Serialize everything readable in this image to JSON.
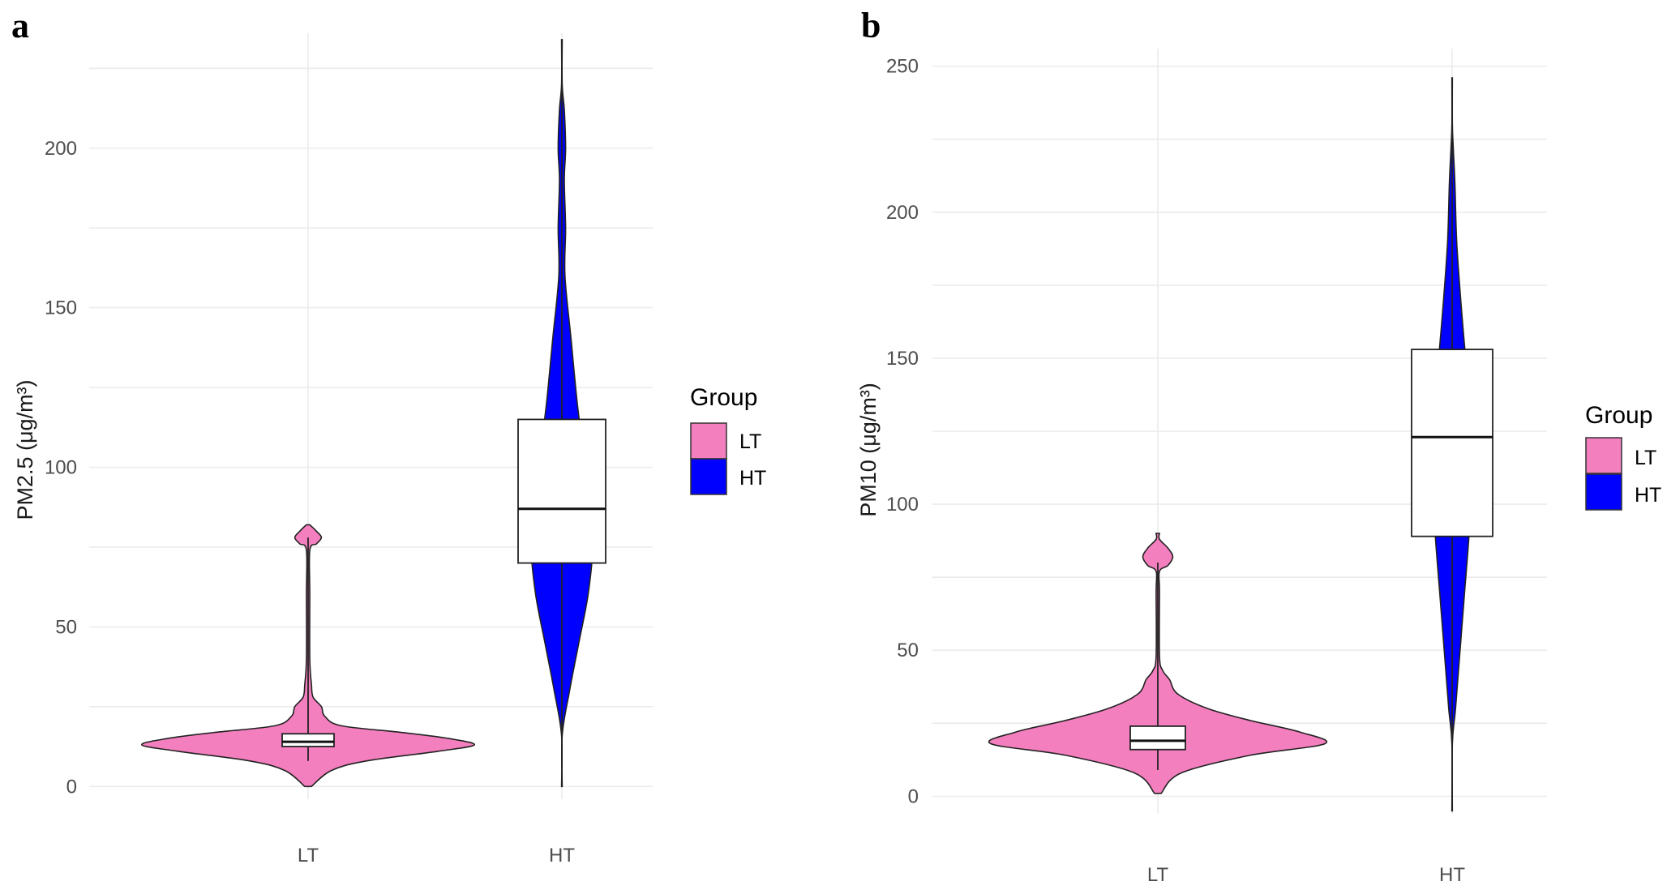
{
  "colors": {
    "LT": "#f47fbf",
    "HT": "#0000ff"
  },
  "chart_data": [
    {
      "panel": "a",
      "type": "violin",
      "ylabel": "PM2.5 (μg/m³)",
      "ylim": [
        -4,
        236
      ],
      "yticks": [
        0,
        50,
        100,
        150,
        200
      ],
      "categories": [
        "LT",
        "HT"
      ],
      "legend": {
        "title": "Group",
        "entries": [
          "LT",
          "HT"
        ],
        "position": "right"
      },
      "grid": true,
      "groups": [
        {
          "name": "LT",
          "color": "#f47fbf",
          "violin": [
            [
              0,
              0.02
            ],
            [
              5,
              0.14
            ],
            [
              8,
              0.35
            ],
            [
              11,
              0.78
            ],
            [
              13,
              1.0
            ],
            [
              15,
              0.85
            ],
            [
              17,
              0.55
            ],
            [
              19,
              0.2
            ],
            [
              22,
              0.1
            ],
            [
              25,
              0.08
            ],
            [
              28,
              0.03
            ],
            [
              32,
              0.02
            ],
            [
              40,
              0.01
            ],
            [
              60,
              0.01
            ],
            [
              74,
              0.01
            ],
            [
              76,
              0.05
            ],
            [
              78,
              0.08
            ],
            [
              80,
              0.05
            ],
            [
              82,
              0.01
            ]
          ],
          "box": {
            "min": 8,
            "q1": 12.5,
            "median": 14,
            "q3": 16.5,
            "max": 20
          },
          "whisker_top": 78
        },
        {
          "name": "HT",
          "color": "#0000ff",
          "violin": [
            [
              0,
              0.01
            ],
            [
              16,
              0.01
            ],
            [
              30,
              0.25
            ],
            [
              45,
              0.55
            ],
            [
              60,
              0.85
            ],
            [
              75,
              1.0
            ],
            [
              90,
              0.9
            ],
            [
              105,
              0.7
            ],
            [
              120,
              0.5
            ],
            [
              140,
              0.3
            ],
            [
              160,
              0.1
            ],
            [
              175,
              0.12
            ],
            [
              190,
              0.08
            ],
            [
              200,
              0.12
            ],
            [
              212,
              0.08
            ],
            [
              220,
              0.01
            ],
            [
              234,
              0.01
            ]
          ],
          "box": {
            "min": 0,
            "q1": 70,
            "median": 87,
            "q3": 115,
            "max": 234
          },
          "whisker_top": 234
        }
      ]
    },
    {
      "panel": "b",
      "type": "violin",
      "ylabel": "PM10 (μg/m³)",
      "ylim": [
        -6,
        256
      ],
      "yticks": [
        0,
        50,
        100,
        150,
        200,
        250
      ],
      "categories": [
        "LT",
        "HT"
      ],
      "legend": {
        "title": "Group",
        "entries": [
          "LT",
          "HT"
        ],
        "position": "right"
      },
      "grid": true,
      "groups": [
        {
          "name": "LT",
          "color": "#f47fbf",
          "violin": [
            [
              1,
              0.02
            ],
            [
              8,
              0.14
            ],
            [
              14,
              0.55
            ],
            [
              18,
              1.0
            ],
            [
              22,
              0.85
            ],
            [
              26,
              0.55
            ],
            [
              30,
              0.3
            ],
            [
              35,
              0.12
            ],
            [
              40,
              0.07
            ],
            [
              43,
              0.03
            ],
            [
              48,
              0.01
            ],
            [
              70,
              0.01
            ],
            [
              77,
              0.01
            ],
            [
              79,
              0.06
            ],
            [
              82,
              0.09
            ],
            [
              85,
              0.06
            ],
            [
              88,
              0.01
            ],
            [
              90,
              0.01
            ]
          ],
          "box": {
            "min": 9,
            "q1": 16,
            "median": 19,
            "q3": 24,
            "max": 37
          },
          "whisker_top": 80
        },
        {
          "name": "HT",
          "color": "#0000ff",
          "violin": [
            [
              -5,
              0.01
            ],
            [
              18,
              0.01
            ],
            [
              30,
              0.15
            ],
            [
              50,
              0.35
            ],
            [
              70,
              0.55
            ],
            [
              90,
              0.75
            ],
            [
              110,
              0.9
            ],
            [
              120,
              1.0
            ],
            [
              135,
              0.85
            ],
            [
              150,
              0.6
            ],
            [
              170,
              0.38
            ],
            [
              190,
              0.2
            ],
            [
              210,
              0.12
            ],
            [
              222,
              0.05
            ],
            [
              230,
              0.01
            ],
            [
              246,
              0.01
            ]
          ],
          "box": {
            "min": -5,
            "q1": 89,
            "median": 123,
            "q3": 153,
            "max": 246
          },
          "whisker_top": 246
        }
      ]
    }
  ]
}
